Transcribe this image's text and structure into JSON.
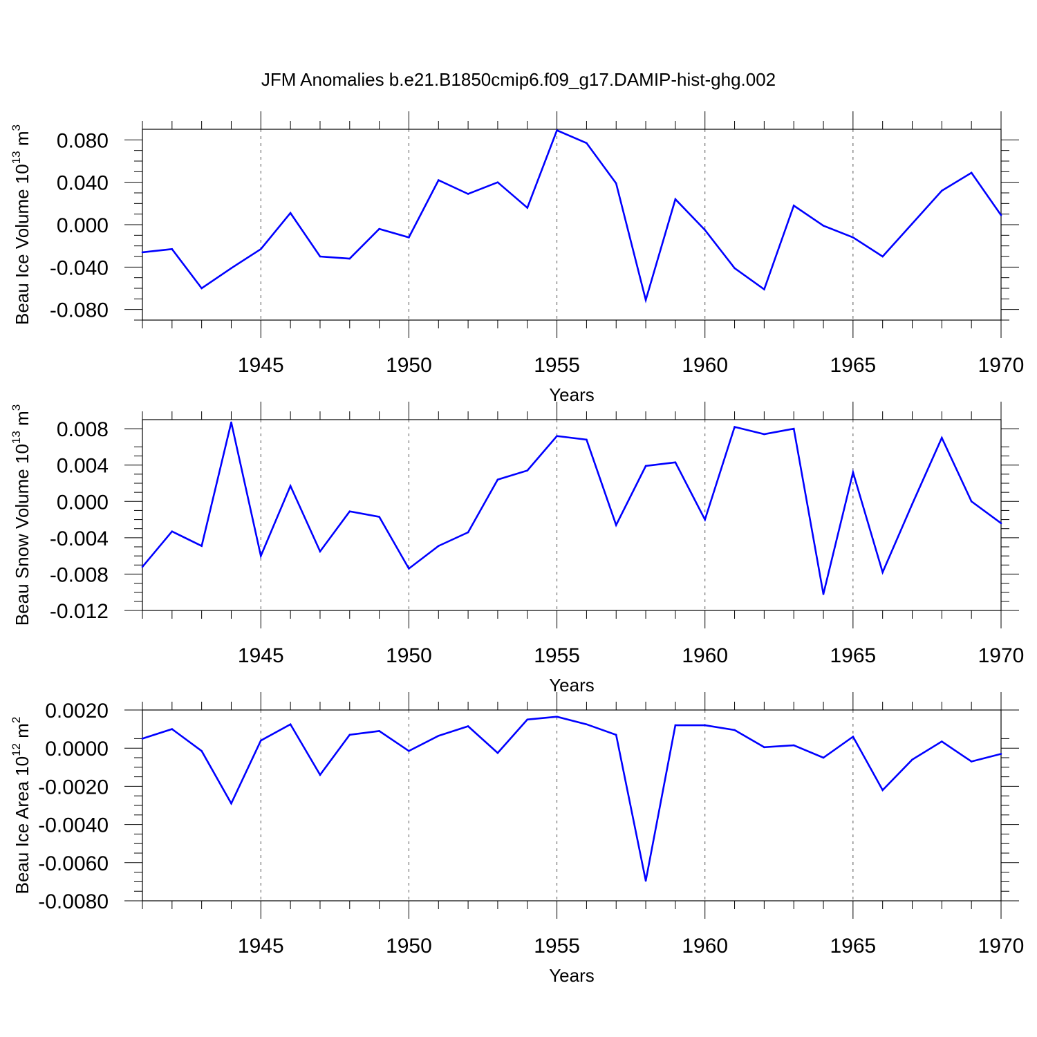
{
  "figure": {
    "title": "JFM Anomalies b.e21.B1850cmip6.f09_g17.DAMIP-hist-ghg.002"
  },
  "chart_data": [
    {
      "type": "line",
      "title": "",
      "xlabel": "Years",
      "ylabel": "Beau Ice Volume 10",
      "ylabel_exp": "13",
      "ylabel_unit": " m",
      "ylabel_unit_exp": "3",
      "xlim": [
        1941,
        1970
      ],
      "ylim": [
        -0.09,
        0.09
      ],
      "xticks": [
        1945,
        1950,
        1955,
        1960,
        1965,
        1970
      ],
      "yticks": [
        -0.08,
        -0.04,
        0.0,
        0.04,
        0.08
      ],
      "ytick_labels": [
        "-0.080",
        "-0.040",
        "0.000",
        "0.040",
        "0.080"
      ],
      "grid": "x-dashed",
      "line_color": "#0000ff",
      "series": [
        {
          "x": [
            1941,
            1942,
            1943,
            1944,
            1945,
            1946,
            1947,
            1948,
            1949,
            1950,
            1951,
            1952,
            1953,
            1954,
            1955,
            1956,
            1957,
            1958,
            1959,
            1960,
            1961,
            1962,
            1963,
            1964,
            1965,
            1966,
            1967,
            1968,
            1969,
            1970
          ],
          "values": [
            -0.026,
            -0.023,
            -0.06,
            -0.041,
            -0.023,
            0.011,
            -0.03,
            -0.032,
            -0.004,
            -0.012,
            0.042,
            0.029,
            0.04,
            0.016,
            0.089,
            0.077,
            0.039,
            -0.071,
            0.024,
            -0.005,
            -0.041,
            -0.061,
            0.018,
            -0.001,
            -0.012,
            -0.03,
            0.001,
            0.032,
            0.049,
            0.009
          ]
        }
      ]
    },
    {
      "type": "line",
      "title": "",
      "xlabel": "Years",
      "ylabel": "Beau Snow Volume 10",
      "ylabel_exp": "13",
      "ylabel_unit": " m",
      "ylabel_unit_exp": "3",
      "xlim": [
        1941,
        1970
      ],
      "ylim": [
        -0.012,
        0.009
      ],
      "xticks": [
        1945,
        1950,
        1955,
        1960,
        1965,
        1970
      ],
      "yticks": [
        -0.012,
        -0.008,
        -0.004,
        0.0,
        0.004,
        0.008
      ],
      "ytick_labels": [
        "-0.012",
        "-0.008",
        "-0.004",
        "0.000",
        "0.004",
        "0.008"
      ],
      "grid": "x-dashed",
      "line_color": "#0000ff",
      "series": [
        {
          "x": [
            1941,
            1942,
            1943,
            1944,
            1945,
            1946,
            1947,
            1948,
            1949,
            1950,
            1951,
            1952,
            1953,
            1954,
            1955,
            1956,
            1957,
            1958,
            1959,
            1960,
            1961,
            1962,
            1963,
            1964,
            1965,
            1966,
            1967,
            1968,
            1969,
            1970
          ],
          "values": [
            -0.0072,
            -0.0033,
            -0.0049,
            0.0087,
            -0.006,
            0.0017,
            -0.0055,
            -0.0011,
            -0.0017,
            -0.0074,
            -0.0049,
            -0.0034,
            0.0024,
            0.0034,
            0.0072,
            0.0068,
            -0.0026,
            0.0039,
            0.0043,
            -0.002,
            0.0082,
            0.0074,
            0.008,
            -0.0102,
            0.0032,
            -0.0078,
            -0.0003,
            0.007,
            0.0,
            -0.0024
          ]
        }
      ]
    },
    {
      "type": "line",
      "title": "",
      "xlabel": "Years",
      "ylabel": "Beau Ice Area 10",
      "ylabel_exp": "12",
      "ylabel_unit": " m",
      "ylabel_unit_exp": "2",
      "xlim": [
        1941,
        1970
      ],
      "ylim": [
        -0.008,
        0.002
      ],
      "xticks": [
        1945,
        1950,
        1955,
        1960,
        1965,
        1970
      ],
      "yticks": [
        -0.008,
        -0.006,
        -0.004,
        -0.002,
        0.0,
        0.002
      ],
      "ytick_labels": [
        "-0.0080",
        "-0.0060",
        "-0.0040",
        "-0.0020",
        "0.0000",
        "0.0020"
      ],
      "grid": "x-dashed",
      "line_color": "#0000ff",
      "series": [
        {
          "x": [
            1941,
            1942,
            1943,
            1944,
            1945,
            1946,
            1947,
            1948,
            1949,
            1950,
            1951,
            1952,
            1953,
            1954,
            1955,
            1956,
            1957,
            1958,
            1959,
            1960,
            1961,
            1962,
            1963,
            1964,
            1965,
            1966,
            1967,
            1968,
            1969,
            1970
          ],
          "values": [
            0.0005,
            0.001,
            -0.00015,
            -0.0029,
            0.0004,
            0.00125,
            -0.0014,
            0.0007,
            0.0009,
            -0.00015,
            0.00065,
            0.00115,
            -0.00025,
            0.0015,
            0.00165,
            0.00125,
            0.0007,
            -0.00695,
            0.0012,
            0.0012,
            0.00095,
            5e-05,
            0.00015,
            -0.0005,
            0.0006,
            -0.0022,
            -0.0006,
            0.00035,
            -0.0007,
            -0.0003
          ]
        }
      ]
    }
  ]
}
